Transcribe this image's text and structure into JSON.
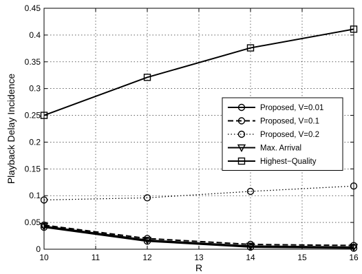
{
  "chart_data": {
    "type": "line",
    "title": "",
    "xlabel": "R",
    "ylabel": "Playback Delay Incidence",
    "xlim": [
      10,
      16
    ],
    "ylim": [
      0,
      0.45
    ],
    "xticks": [
      "10",
      "11",
      "12",
      "13",
      "14",
      "15",
      "16"
    ],
    "yticks": [
      "0",
      "0.05",
      "0.1",
      "0.15",
      "0.2",
      "0.25",
      "0.3",
      "0.35",
      "0.4",
      "0.45"
    ],
    "grid": true,
    "legend_position": "right",
    "x": [
      10,
      12,
      14,
      16
    ],
    "series": [
      {
        "name": "Proposed, V=0.01",
        "values": [
          0.041,
          0.015,
          0.004,
          0.002
        ],
        "line": "solid",
        "marker": "circle"
      },
      {
        "name": "Proposed, V=0.1",
        "values": [
          0.045,
          0.02,
          0.009,
          0.007
        ],
        "line": "dashed",
        "marker": "circle"
      },
      {
        "name": "Proposed, V=0.2",
        "values": [
          0.092,
          0.096,
          0.108,
          0.118
        ],
        "line": "dotted",
        "marker": "circle"
      },
      {
        "name": "Max. Arrival",
        "values": [
          0.043,
          0.017,
          0.006,
          0.004
        ],
        "line": "solid",
        "marker": "triangle-down"
      },
      {
        "name": "Highest−Quality",
        "values": [
          0.25,
          0.321,
          0.376,
          0.411
        ],
        "line": "solid",
        "marker": "square"
      }
    ]
  }
}
